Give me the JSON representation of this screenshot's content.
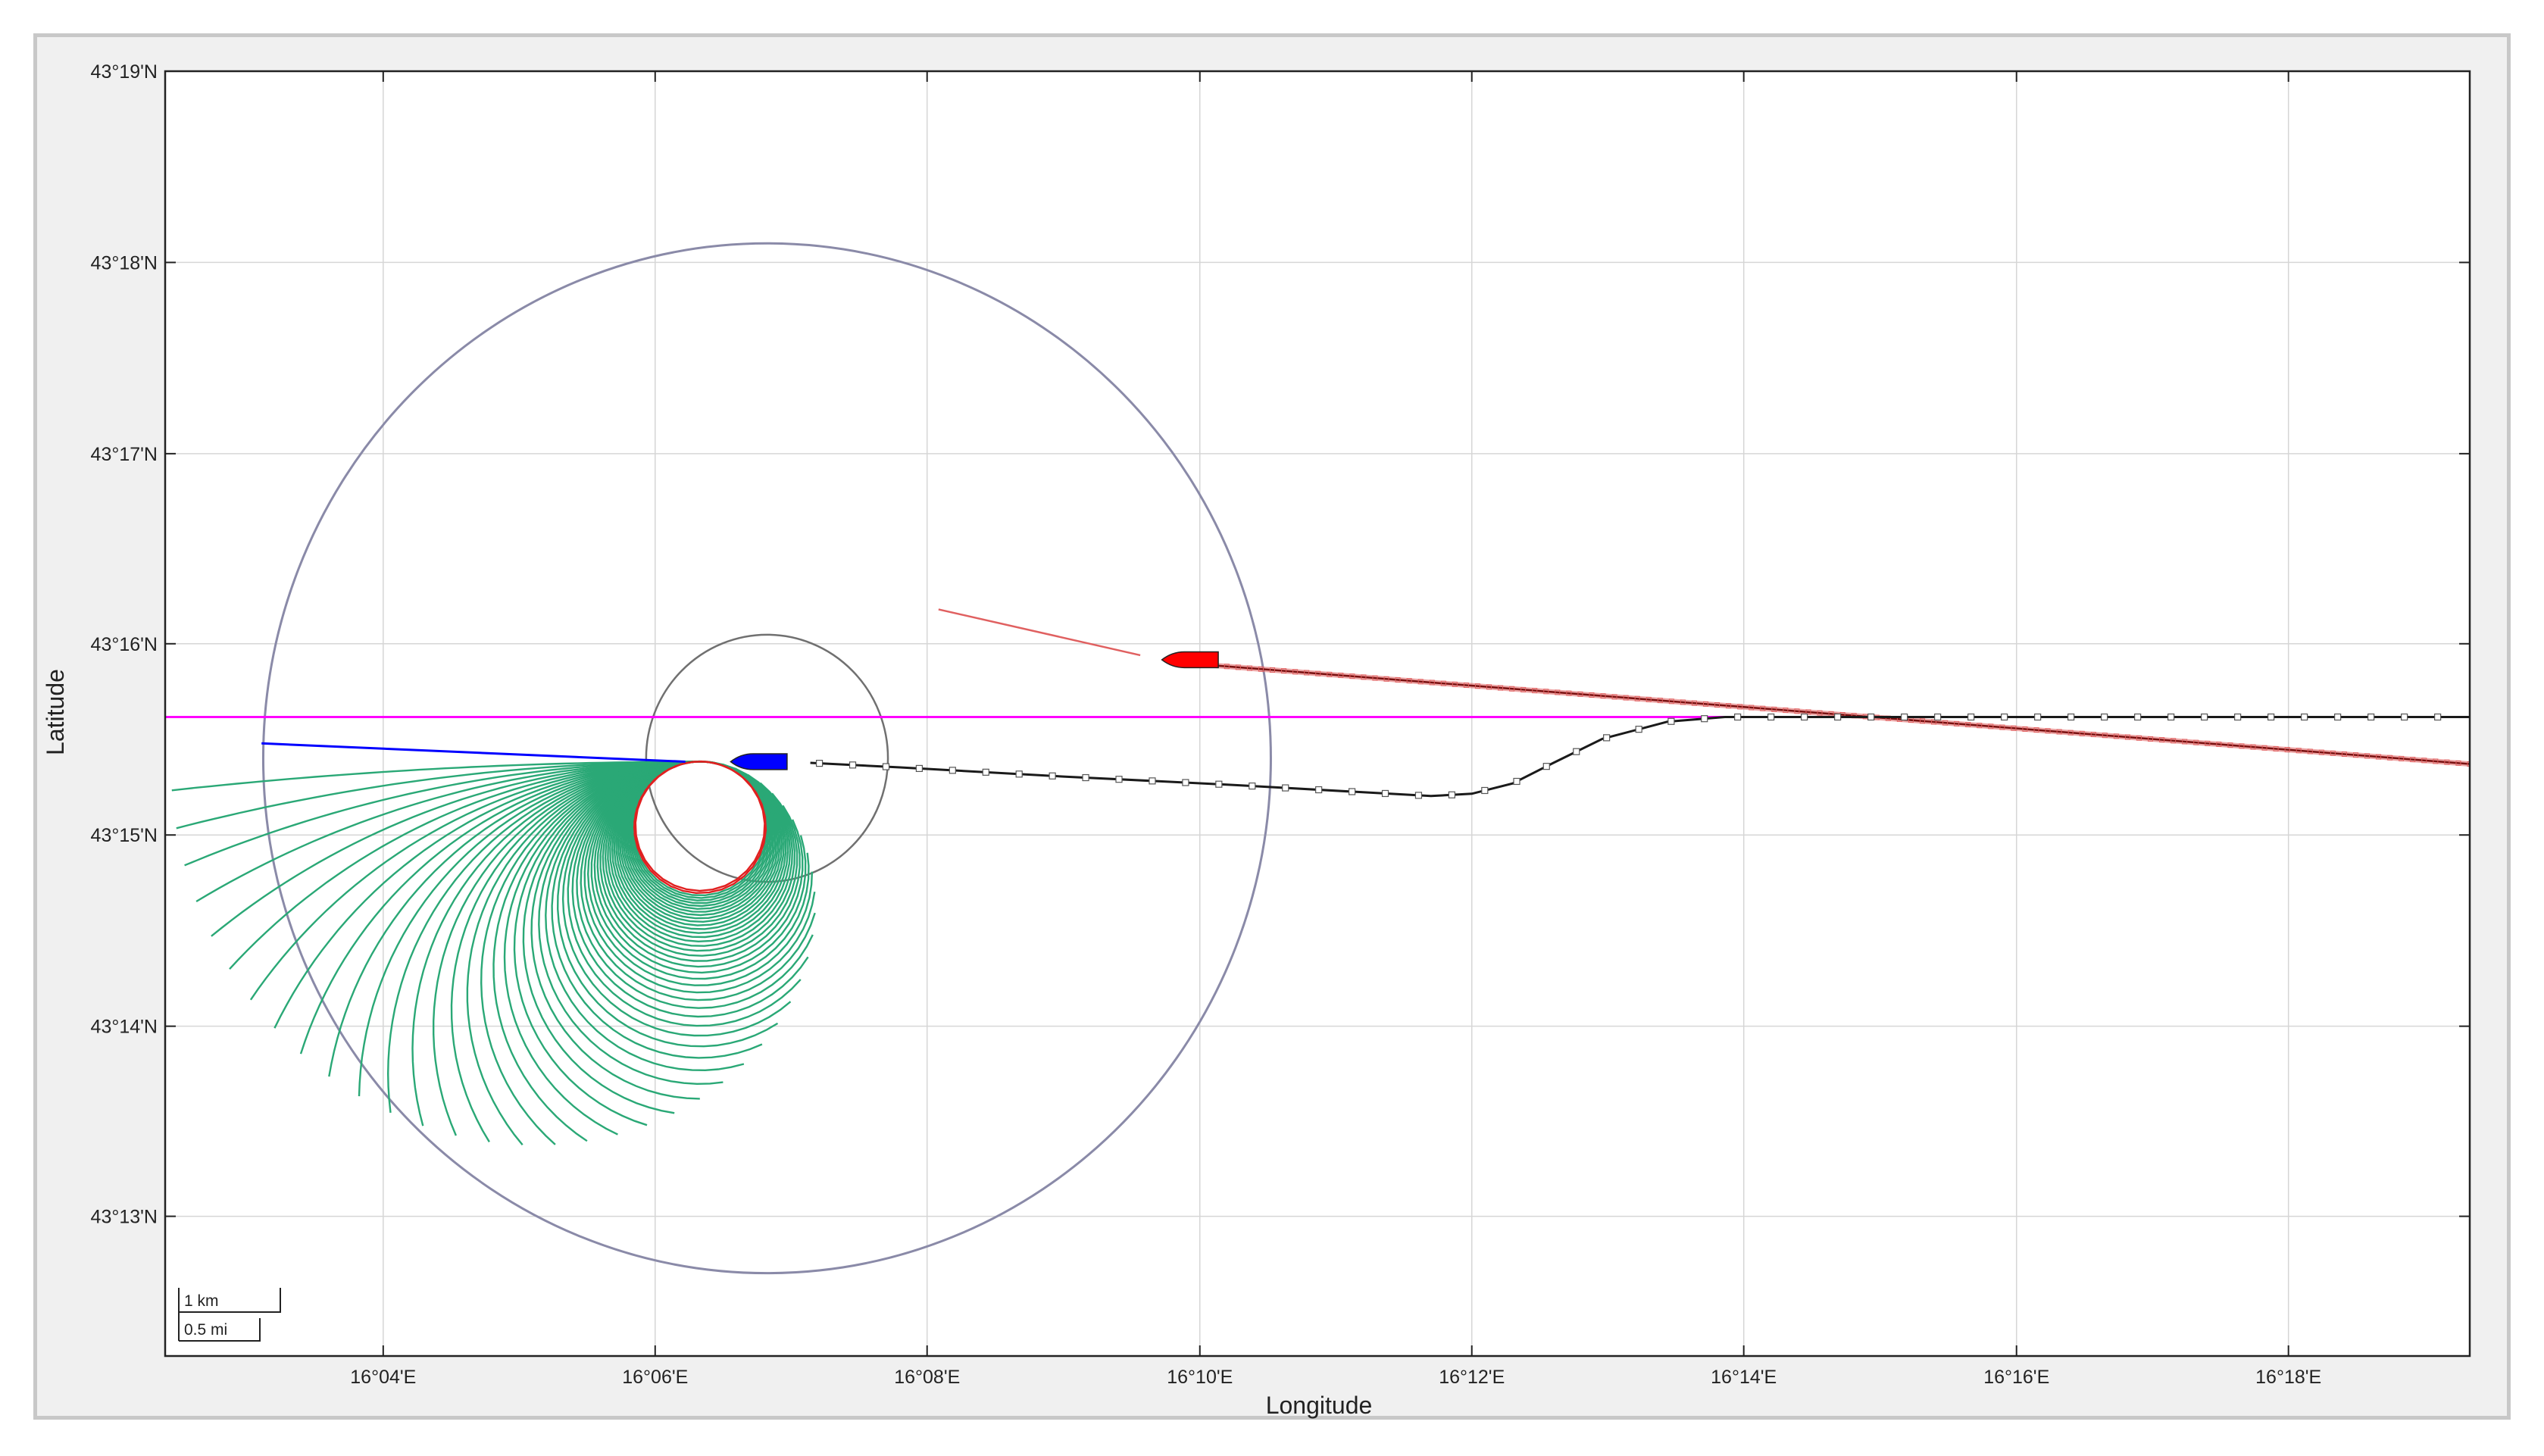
{
  "chart_data": {
    "type": "map",
    "xlabel": "Longitude",
    "ylabel": "Latitude",
    "xlim": [
      16.04,
      16.3222
    ],
    "ylim": [
      43.2045,
      43.3167
    ],
    "grid": true,
    "x_ticks": [
      {
        "value": 16.0667,
        "label": "16°04'E"
      },
      {
        "value": 16.1,
        "label": "16°06'E"
      },
      {
        "value": 16.1333,
        "label": "16°08'E"
      },
      {
        "value": 16.1667,
        "label": "16°10'E"
      },
      {
        "value": 16.2,
        "label": "16°12'E"
      },
      {
        "value": 16.2333,
        "label": "16°14'E"
      },
      {
        "value": 16.2667,
        "label": "16°16'E"
      },
      {
        "value": 16.3,
        "label": "16°18'E"
      }
    ],
    "y_ticks": [
      {
        "value": 43.3167,
        "label": "43°19'N"
      },
      {
        "value": 43.3,
        "label": "43°18'N"
      },
      {
        "value": 43.2833,
        "label": "43°17'N"
      },
      {
        "value": 43.2667,
        "label": "43°16'N"
      },
      {
        "value": 43.25,
        "label": "43°15'N"
      },
      {
        "value": 43.2333,
        "label": "43°14'N"
      },
      {
        "value": 43.2167,
        "label": "43°13'N"
      }
    ],
    "scale_bar": {
      "km_label": "1 km",
      "mi_label": "0.5 mi"
    },
    "colors": {
      "grid": "#d6d6d6",
      "reference_line": "#ff00ff",
      "own_ship": "#0000ff",
      "target_ship": "#ff0000",
      "track": "#1a1a1a",
      "predicted_track": "#e06060",
      "maneuver_fan": "#2aa876",
      "infeasible_maneuvers": "#e02020",
      "range_circle": "#8a8aa8",
      "safety_circle": "#707070"
    },
    "reference_line": {
      "lat": 43.2603
    },
    "own_ship": {
      "lon": 16.1127,
      "lat": 43.2564,
      "heading_deg": 90,
      "length_m": 560
    },
    "target_ship": {
      "lon": 16.1655,
      "lat": 43.2653,
      "heading_deg": 98,
      "length_m": 560
    },
    "range_circle": {
      "center_lon": 16.1137,
      "center_lat": 43.2567,
      "radius_km": 5.0
    },
    "safety_circle": {
      "center_lon": 16.1137,
      "center_lat": 43.2567,
      "radius_km": 1.2
    },
    "own_ship_heading_line": {
      "lon": [
        16.1037,
        16.0518
      ],
      "lat": [
        43.2564,
        43.258
      ]
    },
    "target_ship_heading_line": {
      "lon": [
        16.1594,
        16.1347
      ],
      "lat": [
        43.2657,
        43.2697
      ]
    },
    "track": {
      "lon": [
        16.119,
        16.13,
        16.15,
        16.17,
        16.185,
        16.195,
        16.2,
        16.205,
        16.21,
        16.216,
        16.224,
        16.231,
        16.2333,
        16.245,
        16.26,
        16.3222
      ],
      "lat": [
        43.2563,
        43.2559,
        43.2551,
        43.2544,
        43.2538,
        43.2534,
        43.2536,
        43.2545,
        43.2563,
        43.2584,
        43.2599,
        43.2603,
        43.2603,
        43.2603,
        43.2603,
        43.2603
      ]
    },
    "target_predicted_track": {
      "lon": [
        16.1686,
        16.3222
      ],
      "lat": [
        43.2648,
        43.2562
      ]
    },
    "maneuver_fan": {
      "origin_lon": 16.1047,
      "origin_lat": 43.2564,
      "feasible_headings_deg": [
        96,
        104,
        112,
        120,
        128,
        136,
        144,
        152,
        160,
        168,
        176,
        184,
        192,
        200,
        208,
        216,
        224,
        232,
        240,
        248,
        256,
        264,
        272,
        280,
        288,
        296,
        304,
        312,
        320,
        328,
        336,
        344,
        352,
        360,
        368,
        376,
        384,
        392,
        400,
        408,
        416,
        424,
        432,
        440,
        448,
        456,
        464,
        472,
        480,
        488,
        496,
        504,
        512,
        520,
        528
      ],
      "infeasible_headings_deg": [
        536,
        544
      ]
    }
  }
}
